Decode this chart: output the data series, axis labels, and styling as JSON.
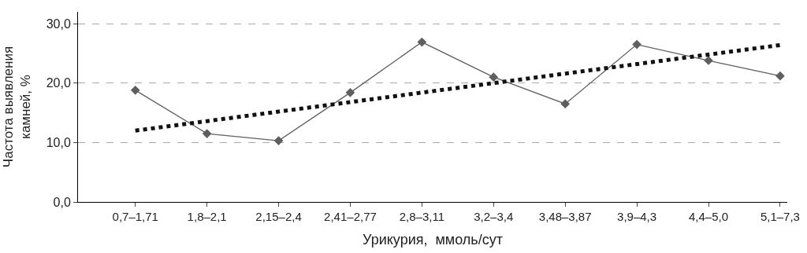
{
  "chart_data": {
    "type": "line",
    "xlabel": "Урикурия,  ммоль/сут",
    "ylabel": "Частота выявления камней, %",
    "categories": [
      "0,7–1,71",
      "1,8–2,1",
      "2,15–2,4",
      "2,41–2,77",
      "2,8–3,11",
      "3,2–3,4",
      "3,48–3,87",
      "3,9–4,3",
      "4,4–5,0",
      "5,1–7,3"
    ],
    "series": [
      {
        "color": "#5f5f5f",
        "marker": "diamond",
        "line_style": "solid",
        "values": [
          18.8,
          11.5,
          10.3,
          18.4,
          26.9,
          21.0,
          16.5,
          26.5,
          23.8,
          21.2
        ]
      },
      {
        "color": "#111111",
        "marker": "none",
        "line_style": "dotted",
        "values": [
          12.0,
          13.6,
          15.2,
          16.8,
          18.4,
          20.0,
          21.6,
          23.2,
          24.8,
          26.4
        ]
      }
    ],
    "ylim": [
      0,
      32
    ],
    "yticks": [
      {
        "value": 0,
        "label": "0,0"
      },
      {
        "value": 10,
        "label": "10,0"
      },
      {
        "value": 20,
        "label": "20,0"
      },
      {
        "value": 30,
        "label": "30,0"
      }
    ],
    "grid": "y"
  }
}
